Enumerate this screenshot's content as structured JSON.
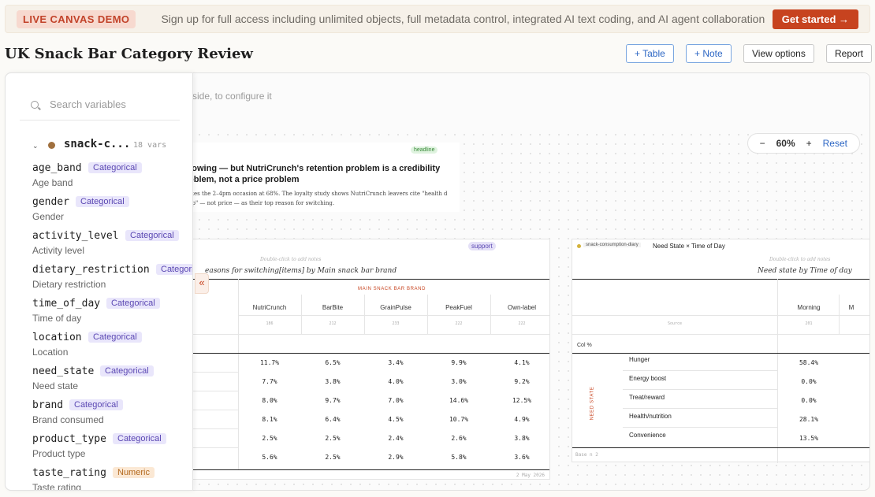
{
  "banner": {
    "badge": "LIVE CANVAS DEMO",
    "text": "Sign up for full access including unlimited objects, full metadata control, integrated AI text coding, and AI agent collaboration",
    "cta": "Get started →"
  },
  "header": {
    "title": "UK Snack Bar Category Review",
    "add_table": "+ Table",
    "add_note": "+ Note",
    "view_options": "View options",
    "report": "Report"
  },
  "canvas": {
    "hint": "side, to configure it",
    "zoom": {
      "minus": "−",
      "level": "60%",
      "plus": "+",
      "reset": "Reset"
    },
    "headline_card": {
      "tag": "headline",
      "title": "rowing — but NutriCrunch's retention problem is a credibility oblem, not a price problem",
      "body": "ates the 2–4pm occasion at 68%. The loyalty study shows NutriCrunch leavers cite \"health d up\" — not price — as their top reason for switching."
    },
    "switch_table": {
      "tag": "support",
      "hint": "Double-click to add notes",
      "title": "easons for switching[items] by Main snack bar brand",
      "brand_caption": "MAIN SNACK BAR BRAND",
      "columns": [
        "NutriCrunch",
        "BarBite",
        "GrainPulse",
        "PeakFuel",
        "Own-label"
      ],
      "bases": [
        "186",
        "212",
        "233",
        "222",
        "222"
      ],
      "rows": [
        [
          "11.7%",
          "6.5%",
          "3.4%",
          "9.9%",
          "4.1%"
        ],
        [
          "7.7%",
          "3.8%",
          "4.0%",
          "3.0%",
          "9.2%"
        ],
        [
          "8.0%",
          "9.7%",
          "7.0%",
          "14.6%",
          "12.5%"
        ],
        [
          "8.1%",
          "6.4%",
          "4.5%",
          "10.7%",
          "4.9%"
        ],
        [
          "2.5%",
          "2.5%",
          "2.4%",
          "2.6%",
          "3.8%"
        ],
        [
          "5.6%",
          "2.5%",
          "2.9%",
          "5.8%",
          "3.6%"
        ]
      ],
      "footer": "2 May 2026"
    },
    "need_table": {
      "dataset_tag": "snack-consumption-diary",
      "header_title": "Need State × Time of Day",
      "hint": "Double-click to add notes",
      "title": "Need state by Time of day",
      "column": "Morning",
      "col_base_label": "Source",
      "col_base": "201",
      "col_pct": "Col %",
      "row_group": "NEED STATE",
      "rows": [
        {
          "label": "Hunger",
          "value": "58.4%"
        },
        {
          "label": "Energy boost",
          "value": "0.0%"
        },
        {
          "label": "Treat/reward",
          "value": "0.0%"
        },
        {
          "label": "Health/nutrition",
          "value": "28.1%"
        },
        {
          "label": "Convenience",
          "value": "13.5%"
        }
      ],
      "footer": "Base n 2"
    }
  },
  "sidebar": {
    "search_placeholder": "Search variables",
    "dataset": {
      "name": "snack-c...",
      "count": "18 vars",
      "chevron": "⌄"
    },
    "variables": [
      {
        "name": "age_band",
        "label": "Age band",
        "type": "Categorical"
      },
      {
        "name": "gender",
        "label": "Gender",
        "type": "Categorical"
      },
      {
        "name": "activity_level",
        "label": "Activity level",
        "type": "Categorical"
      },
      {
        "name": "dietary_restriction",
        "label": "Dietary restriction",
        "type": "Categorical"
      },
      {
        "name": "time_of_day",
        "label": "Time of day",
        "type": "Categorical"
      },
      {
        "name": "location",
        "label": "Location",
        "type": "Categorical"
      },
      {
        "name": "need_state",
        "label": "Need state",
        "type": "Categorical"
      },
      {
        "name": "brand",
        "label": "Brand consumed",
        "type": "Categorical"
      },
      {
        "name": "product_type",
        "label": "Product type",
        "type": "Categorical"
      },
      {
        "name": "taste_rating",
        "label": "Taste rating",
        "type": "Numeric"
      }
    ],
    "collapse_icon": "«"
  }
}
